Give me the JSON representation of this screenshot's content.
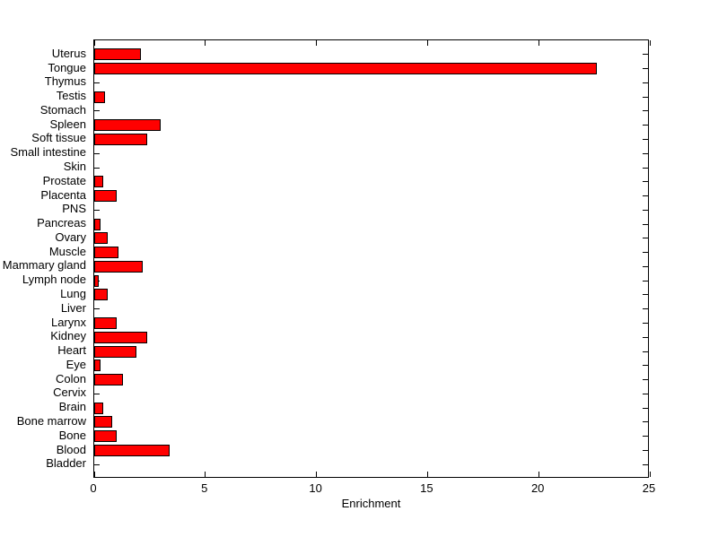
{
  "chart_data": {
    "type": "bar",
    "orientation": "horizontal",
    "title": "",
    "xlabel": "Enrichment",
    "ylabel": "",
    "xlim": [
      0,
      25
    ],
    "xticks": [
      0,
      5,
      10,
      15,
      20,
      25
    ],
    "grid": false,
    "legend": false,
    "bar_color": "#ff0000",
    "bar_edge_color": "#000000",
    "axis_color": "#000000",
    "background_color": "#ffffff",
    "categories": [
      "Uterus",
      "Tongue",
      "Thymus",
      "Testis",
      "Stomach",
      "Spleen",
      "Soft tissue",
      "Small intestine",
      "Skin",
      "Prostate",
      "Placenta",
      "PNS",
      "Pancreas",
      "Ovary",
      "Muscle",
      "Mammary gland",
      "Lymph node",
      "Lung",
      "Liver",
      "Larynx",
      "Kidney",
      "Heart",
      "Eye",
      "Colon",
      "Cervix",
      "Brain",
      "Bone marrow",
      "Bone",
      "Blood",
      "Bladder"
    ],
    "values": [
      2.1,
      22.6,
      0,
      0.5,
      0,
      3.0,
      2.4,
      0,
      0,
      0.4,
      1.0,
      0,
      0.3,
      0.6,
      1.1,
      2.2,
      0.2,
      0.6,
      0,
      1.0,
      2.4,
      1.9,
      0.3,
      1.3,
      0,
      0.4,
      0.8,
      1.0,
      3.4,
      0
    ]
  }
}
